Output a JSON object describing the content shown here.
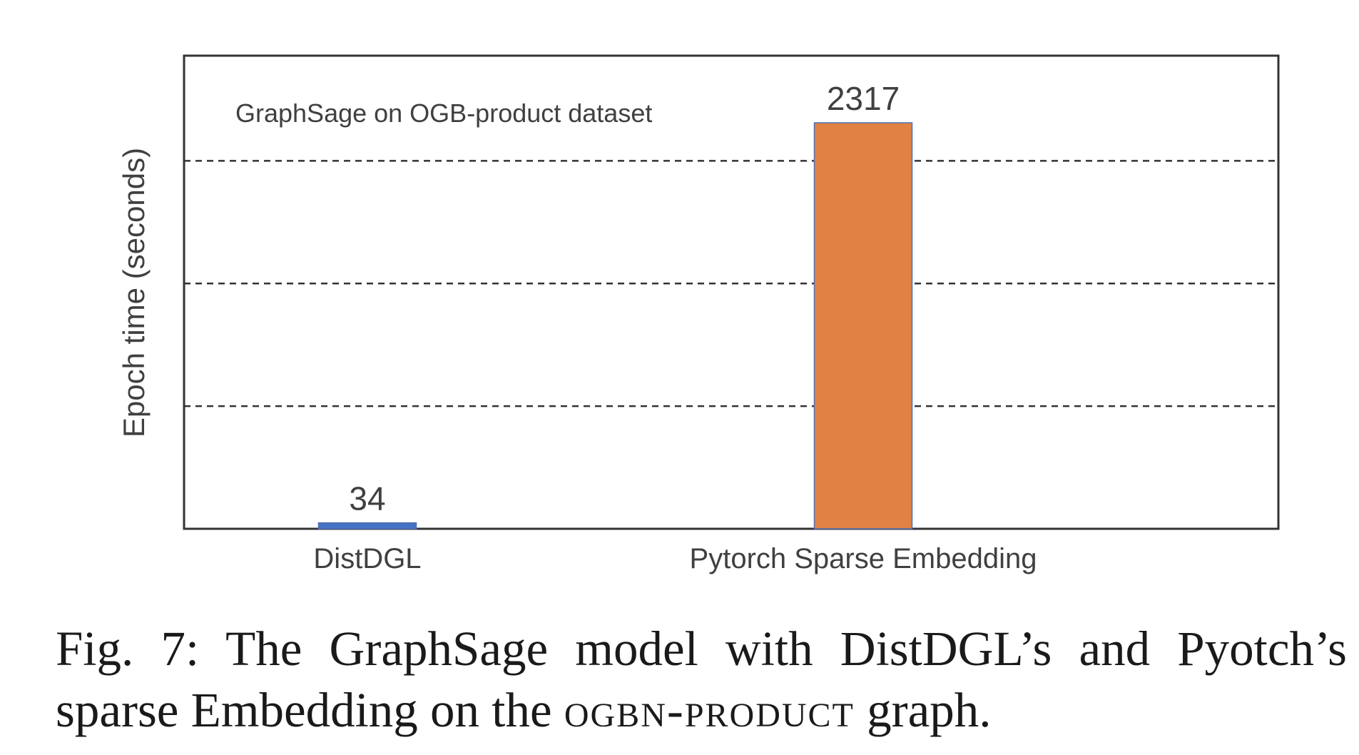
{
  "chart_data": {
    "type": "bar",
    "title": "GraphSage on OGB-product dataset",
    "ylabel": "Epoch time (seconds)",
    "xlabel": "",
    "categories": [
      "DistDGL",
      "Pytorch Sparse Embedding"
    ],
    "values": [
      34,
      2317
    ],
    "data_labels": [
      "34",
      "2317"
    ],
    "ylim": [
      0,
      2700
    ],
    "grid": true,
    "grid_style": "dashed-horizontal",
    "colors": [
      "#4472c4",
      "#e08243"
    ],
    "legend": "none"
  },
  "caption": {
    "prefix": "Fig. 7: The GraphSage model with DistDGL’s and Pyotch’s sparse Embedding on the ",
    "graph_name": "ogbn-product",
    "suffix": " graph."
  },
  "colors": {
    "axis": "#333333",
    "grid": "#333333",
    "text": "#404040",
    "caption": "#1a1a1a"
  }
}
